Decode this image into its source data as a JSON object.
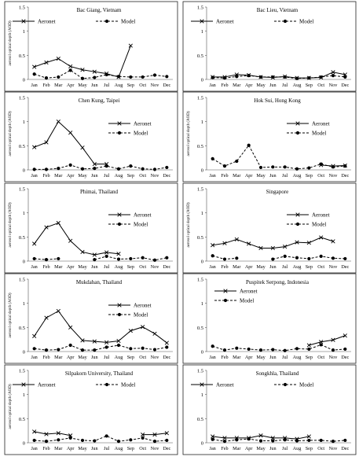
{
  "chart_data": {
    "type": "line",
    "months": [
      "Jan",
      "Feb",
      "Mar",
      "Apr",
      "May",
      "Jun",
      "Jul",
      "Aug",
      "Sep",
      "Oct",
      "Nov",
      "Dec"
    ],
    "y_ticks": [
      "0",
      "0.5",
      "1",
      "1.5"
    ],
    "ylim": [
      0,
      1.5
    ],
    "ylabel": "aerosol optical depth (AOD)",
    "series_names": [
      "Aeronet",
      "Model"
    ],
    "panels": [
      {
        "title": "Bac Giang, Vietnam",
        "show_ylabel": true,
        "legend": "top",
        "aeronet": [
          0.26,
          0.35,
          0.43,
          0.27,
          0.2,
          0.16,
          0.12,
          0.05,
          0.7,
          null,
          null,
          null
        ],
        "model": [
          0.11,
          0.03,
          0.05,
          0.19,
          0.02,
          0.04,
          0.1,
          0.06,
          0.05,
          0.05,
          0.09,
          0.06
        ]
      },
      {
        "title": "Bac Lieu, Vietnam",
        "show_ylabel": false,
        "legend": "top",
        "aeronet": [
          0.05,
          0.05,
          0.1,
          0.09,
          0.05,
          0.04,
          0.06,
          0.03,
          0.03,
          0.04,
          0.15,
          0.1
        ],
        "model": [
          0.04,
          0.03,
          0.06,
          0.08,
          0.05,
          0.05,
          0.05,
          0.02,
          0.03,
          0.05,
          0.08,
          0.05
        ]
      },
      {
        "title": "Chen Kung, Taipei",
        "show_ylabel": true,
        "legend": "right",
        "aeronet": [
          0.47,
          0.57,
          1.0,
          0.77,
          0.46,
          0.12,
          0.12,
          null,
          null,
          null,
          null,
          null
        ],
        "model": [
          0.01,
          0.01,
          0.03,
          0.1,
          0.02,
          0.03,
          0.08,
          0.02,
          0.08,
          0.02,
          0.01,
          0.05
        ]
      },
      {
        "title": "Hok Sui, Hong Kong",
        "show_ylabel": true,
        "legend": "right",
        "aeronet": [
          null,
          null,
          null,
          null,
          null,
          null,
          null,
          null,
          null,
          0.1,
          0.08,
          0.09
        ],
        "model": [
          0.23,
          0.08,
          0.18,
          0.51,
          0.05,
          0.06,
          0.06,
          0.02,
          0.04,
          0.12,
          0.06,
          0.08
        ]
      },
      {
        "title": "Phimai, Thailand",
        "show_ylabel": true,
        "legend": "right",
        "aeronet": [
          0.36,
          0.7,
          0.79,
          0.42,
          0.19,
          0.13,
          0.18,
          0.15,
          null,
          null,
          null,
          null
        ],
        "model": [
          0.05,
          0.03,
          0.05,
          null,
          null,
          0.03,
          0.1,
          0.04,
          0.05,
          0.07,
          0.02,
          0.07
        ]
      },
      {
        "title": "Singapore",
        "show_ylabel": true,
        "legend": "right",
        "aeronet": [
          0.33,
          0.37,
          0.45,
          0.36,
          0.27,
          0.27,
          0.3,
          0.39,
          0.38,
          0.49,
          0.41,
          null
        ],
        "model": [
          0.11,
          0.04,
          0.06,
          null,
          null,
          0.04,
          0.1,
          0.07,
          0.05,
          0.1,
          0.06,
          0.05
        ]
      },
      {
        "title": "Mukdahan, Thailand",
        "show_ylabel": true,
        "legend": "right",
        "aeronet": [
          0.32,
          0.7,
          0.84,
          0.5,
          0.23,
          0.21,
          0.19,
          0.22,
          0.43,
          0.51,
          0.37,
          0.18
        ],
        "model": [
          0.06,
          0.03,
          0.04,
          0.13,
          0.03,
          0.03,
          0.09,
          0.13,
          0.06,
          0.07,
          0.04,
          0.09
        ]
      },
      {
        "title": "Puspitek Serpong, Indonesia",
        "show_ylabel": false,
        "legend": "left",
        "aeronet": [
          null,
          null,
          null,
          null,
          null,
          null,
          null,
          null,
          0.13,
          0.2,
          0.24,
          0.33
        ],
        "model": [
          0.11,
          0.03,
          0.07,
          0.05,
          0.03,
          0.04,
          0.02,
          0.06,
          0.05,
          0.14,
          0.03,
          0.05
        ]
      },
      {
        "title": "Silpakorn University, Thailand",
        "show_ylabel": true,
        "legend": "top",
        "aeronet": [
          0.23,
          0.18,
          0.2,
          0.15,
          null,
          null,
          null,
          null,
          null,
          0.17,
          0.17,
          0.2
        ],
        "model": [
          0.05,
          0.03,
          0.06,
          0.1,
          0.05,
          0.04,
          0.14,
          0.03,
          0.06,
          0.1,
          0.03,
          0.05
        ]
      },
      {
        "title": "Songkhla, Thailand",
        "show_ylabel": false,
        "legend": "top",
        "aeronet": [
          0.13,
          0.1,
          0.1,
          0.1,
          0.15,
          0.1,
          0.1,
          0.08,
          0.13,
          null,
          null,
          null
        ],
        "model": [
          0.07,
          0.03,
          0.06,
          0.08,
          0.04,
          0.04,
          0.06,
          0.04,
          0.05,
          0.05,
          0.03,
          0.05
        ]
      }
    ]
  }
}
